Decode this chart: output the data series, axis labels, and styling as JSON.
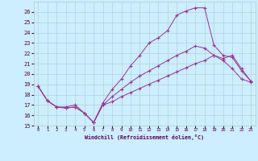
{
  "xlabel": "Windchill (Refroidissement éolien,°C)",
  "background_color": "#cceeff",
  "grid_color": "#aacccc",
  "line_color": "#993399",
  "xmin": -0.5,
  "xmax": 23.5,
  "ymin": 15,
  "ymax": 27,
  "series": [
    {
      "x": [
        0,
        1,
        2,
        3,
        4,
        5,
        6,
        7,
        8,
        9,
        10,
        11,
        12,
        13,
        14,
        15,
        16,
        17,
        18,
        19,
        20,
        21,
        22,
        23
      ],
      "y": [
        18.8,
        17.4,
        16.8,
        16.8,
        17.0,
        16.2,
        15.3,
        17.2,
        18.5,
        19.5,
        20.8,
        21.8,
        23.0,
        23.5,
        24.2,
        25.7,
        26.1,
        26.4,
        26.4,
        22.8,
        21.8,
        21.6,
        20.3,
        19.3
      ]
    },
    {
      "x": [
        0,
        1,
        2,
        3,
        4,
        5,
        6,
        7,
        8,
        9,
        10,
        11,
        12,
        13,
        14,
        15,
        16,
        17,
        18,
        19,
        20,
        21,
        22,
        23
      ],
      "y": [
        18.8,
        17.4,
        16.8,
        16.7,
        16.8,
        16.2,
        15.3,
        17.0,
        17.8,
        18.5,
        19.2,
        19.8,
        20.3,
        20.8,
        21.3,
        21.8,
        22.2,
        22.7,
        22.5,
        21.8,
        21.5,
        21.8,
        20.5,
        19.3
      ]
    },
    {
      "x": [
        0,
        1,
        2,
        3,
        4,
        5,
        6,
        7,
        8,
        9,
        10,
        11,
        12,
        13,
        14,
        15,
        16,
        17,
        18,
        19,
        20,
        21,
        22,
        23
      ],
      "y": [
        18.8,
        17.4,
        16.8,
        16.7,
        16.8,
        16.2,
        15.3,
        17.0,
        17.3,
        17.8,
        18.2,
        18.6,
        19.0,
        19.4,
        19.8,
        20.2,
        20.6,
        21.0,
        21.3,
        21.8,
        21.3,
        20.5,
        19.5,
        19.2
      ]
    }
  ],
  "yticks": [
    15,
    16,
    17,
    18,
    19,
    20,
    21,
    22,
    23,
    24,
    25,
    26
  ],
  "xticks": [
    0,
    1,
    2,
    3,
    4,
    5,
    6,
    7,
    8,
    9,
    10,
    11,
    12,
    13,
    14,
    15,
    16,
    17,
    18,
    19,
    20,
    21,
    22,
    23
  ]
}
